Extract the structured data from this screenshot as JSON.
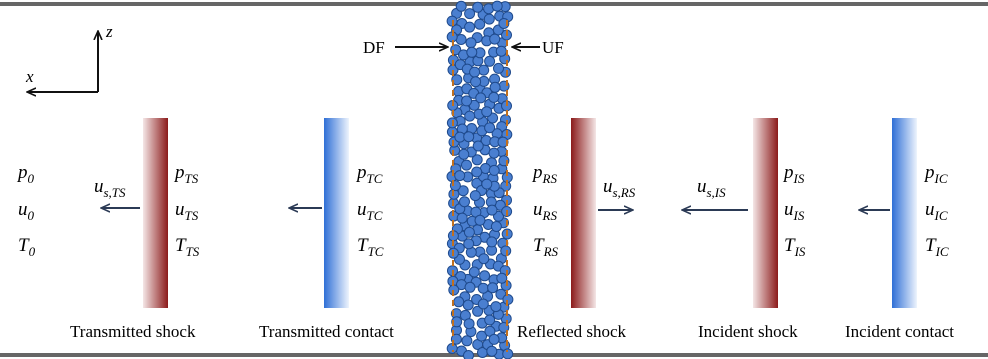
{
  "colors": {
    "wall": "#666666",
    "shock_dark": "#8b1a1a",
    "shock_light": "#f4e6e6",
    "contact_dark": "#2f6fd6",
    "contact_light": "#eef4fd",
    "particle_fill": "#4a7fd0",
    "particle_stroke": "#1f4a8c",
    "front_line": "#c07020",
    "arrow": "#2b3a55"
  },
  "axes": {
    "z_label": "z",
    "x_label": "x"
  },
  "fronts": {
    "downstream": "DF",
    "upstream": "UF"
  },
  "ambient": {
    "p": "p",
    "p_sub": "0",
    "u": "u",
    "u_sub": "0",
    "T": "T",
    "T_sub": "0"
  },
  "transmitted_shock": {
    "caption": "Transmitted shock",
    "velocity": "u",
    "velocity_sub": "s,TS",
    "p": "p",
    "u": "u",
    "T": "T",
    "sub": "TS"
  },
  "transmitted_contact": {
    "caption": "Transmitted contact",
    "p": "p",
    "u": "u",
    "T": "T",
    "sub": "TC"
  },
  "reflected_shock": {
    "caption": "Reflected shock",
    "velocity": "u",
    "velocity_sub": "s,RS",
    "p": "p",
    "u": "u",
    "T": "T",
    "sub": "RS"
  },
  "incident_shock": {
    "caption": "Incident shock",
    "velocity": "u",
    "velocity_sub": "s,IS",
    "p": "p",
    "u": "u",
    "T": "T",
    "sub": "IS"
  },
  "incident_contact": {
    "caption": "Incident contact",
    "p": "p",
    "u": "u",
    "T": "T",
    "sub": "IC"
  }
}
